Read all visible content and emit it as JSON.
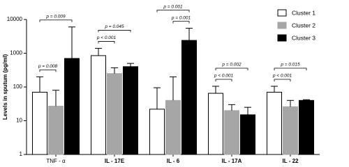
{
  "chart_data": {
    "type": "bar",
    "y_label": "Levels in sputum (pg/ml)",
    "categories": [
      "TNF - α",
      "IL - 17E",
      "IL - 6",
      "IL - 17A",
      "IL - 22"
    ],
    "series": [
      {
        "name": "Cluster 1",
        "color": "#ffffff",
        "values": [
          70,
          850,
          22,
          65,
          70
        ],
        "errors": [
          130,
          550,
          73,
          40,
          35
        ]
      },
      {
        "name": "Cluster 2",
        "color": "#a6a6a6",
        "values": [
          27,
          250,
          40,
          20,
          26
        ],
        "errors": [
          53,
          120,
          160,
          10,
          14
        ]
      },
      {
        "name": "Cluster 3",
        "color": "#000000",
        "values": [
          700,
          400,
          2400,
          15,
          40
        ],
        "errors": [
          5300,
          100,
          3100,
          10,
          2
        ]
      }
    ],
    "ylim": [
      1,
      10000
    ],
    "yticks": [
      1,
      10,
      100,
      1000,
      10000
    ],
    "log_scale": true,
    "legend": "top-right",
    "comparisons": [
      {
        "category": 0,
        "series": [
          0,
          1
        ],
        "text": "p = 0.008"
      },
      {
        "category": 0,
        "series": [
          0,
          2
        ],
        "text": "p = 0.009"
      },
      {
        "category": 1,
        "series": [
          0,
          1
        ],
        "text": "p < 0.001"
      },
      {
        "category": 1,
        "series": [
          0,
          2
        ],
        "text": "p = 0.045"
      },
      {
        "category": 2,
        "series": [
          1,
          2
        ],
        "text": "p = 0.001"
      },
      {
        "category": 2,
        "series": [
          0,
          2
        ],
        "text": "p = 0.001"
      },
      {
        "category": 3,
        "series": [
          0,
          1
        ],
        "text": "p < 0.001"
      },
      {
        "category": 3,
        "series": [
          0,
          2
        ],
        "text": "p = 0.002"
      },
      {
        "category": 4,
        "series": [
          0,
          1
        ],
        "text": "p < 0.001"
      },
      {
        "category": 4,
        "series": [
          0,
          2
        ],
        "text": "p = 0.015"
      }
    ]
  }
}
